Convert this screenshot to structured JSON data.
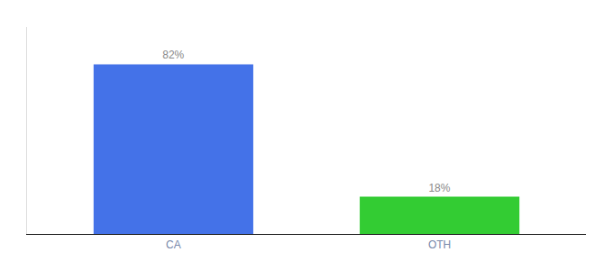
{
  "chart_data": {
    "type": "bar",
    "categories": [
      "CA",
      "OTH"
    ],
    "values": [
      82,
      18
    ],
    "value_labels": [
      "82%",
      "18%"
    ],
    "data_labels": true,
    "colors": [
      "#4472e8",
      "#33cc33"
    ],
    "ylim": [
      0,
      100
    ],
    "grid": false,
    "tick_labels": "x"
  }
}
